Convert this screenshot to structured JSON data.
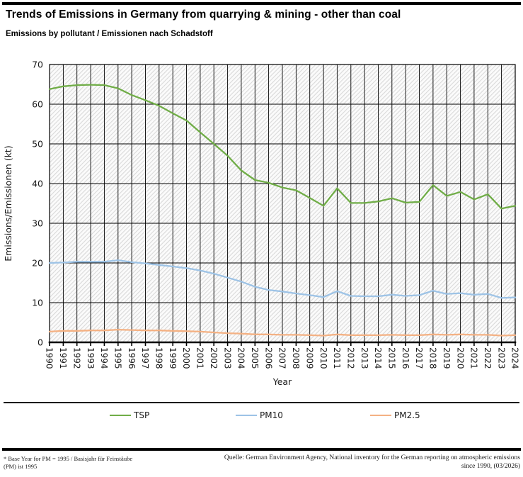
{
  "chart_data": {
    "type": "line",
    "title": "Trends of Emissions in Germany from quarrying & mining - other than coal",
    "subtitle": "Emissions by pollutant / Emissionen nach Schadstoff",
    "xlabel": "Year",
    "ylabel": "Emissions/Emissionen (kt)",
    "ylim": [
      0,
      70
    ],
    "yticks": [
      0,
      10,
      20,
      30,
      40,
      50,
      60,
      70
    ],
    "grid": true,
    "plot_style": "diagonal-hatch",
    "grid_color": "#000000",
    "legend_position": "bottom",
    "x": [
      1990,
      1991,
      1992,
      1993,
      1994,
      1995,
      1996,
      1997,
      1998,
      1999,
      2000,
      2001,
      2002,
      2003,
      2004,
      2005,
      2006,
      2007,
      2008,
      2009,
      2010,
      2011,
      2012,
      2013,
      2014,
      2015,
      2016,
      2017,
      2018,
      2019,
      2020,
      2021,
      2022,
      2023,
      2024
    ],
    "series": [
      {
        "name": "TSP",
        "color": "#70AD47",
        "values": [
          63.8,
          64.5,
          64.8,
          64.9,
          64.8,
          64.0,
          62.3,
          61.0,
          59.6,
          57.7,
          55.9,
          52.9,
          50.0,
          47.0,
          43.3,
          40.9,
          40.2,
          39.0,
          38.3,
          36.4,
          34.4,
          38.8,
          35.1,
          35.1,
          35.5,
          36.3,
          35.2,
          35.4,
          39.6,
          36.9,
          37.9,
          36.0,
          37.3,
          33.7,
          34.4
        ]
      },
      {
        "name": "PM10",
        "color": "#9DC3E6",
        "values": [
          20.0,
          20.1,
          20.3,
          20.3,
          20.3,
          20.7,
          20.2,
          19.9,
          19.5,
          19.1,
          18.7,
          18.1,
          17.3,
          16.3,
          15.3,
          14.0,
          13.2,
          12.8,
          12.3,
          11.9,
          11.4,
          12.9,
          11.7,
          11.6,
          11.6,
          12.0,
          11.7,
          11.9,
          13.0,
          12.2,
          12.4,
          12.0,
          12.2,
          11.2,
          11.3
        ]
      },
      {
        "name": "PM2.5",
        "color": "#F4B183",
        "values": [
          2.7,
          2.9,
          2.9,
          3.0,
          3.0,
          3.2,
          3.1,
          3.0,
          3.0,
          2.9,
          2.8,
          2.7,
          2.5,
          2.3,
          2.2,
          2.0,
          2.0,
          1.9,
          1.9,
          1.8,
          1.7,
          2.0,
          1.8,
          1.8,
          1.8,
          1.9,
          1.8,
          1.8,
          2.0,
          1.9,
          2.0,
          1.9,
          1.9,
          1.7,
          1.8
        ]
      }
    ]
  },
  "footer": {
    "note": [
      "* Base Year for PM = 1995 / Basisjahr für Feinstäube",
      "(PM) ist 1995"
    ],
    "source": [
      "Quelle: German Environment Agency, National inventory for the German reporting on atmospheric emissions",
      "since 1990, (03/2026)"
    ]
  }
}
